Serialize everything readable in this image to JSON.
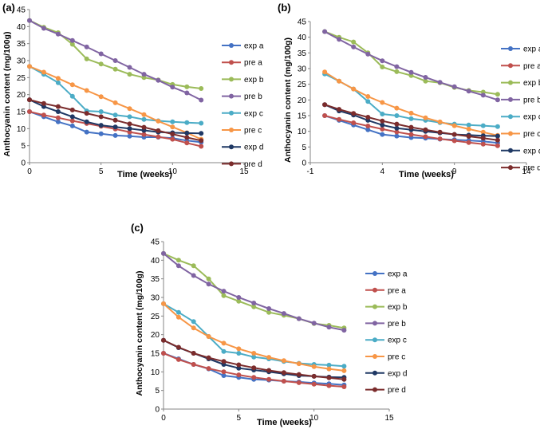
{
  "figure": {
    "series_names": [
      "exp a",
      "pre a",
      "exp b",
      "pre b",
      "exp c",
      "pre c",
      "exp d",
      "pre d"
    ],
    "series_colors": [
      "#4472C4",
      "#C0504D",
      "#9BBB59",
      "#8064A2",
      "#4BACC6",
      "#F79646",
      "#1F3864",
      "#7B2C2C"
    ]
  },
  "chart_data": [
    {
      "type": "line",
      "panel_label": "(a)",
      "xlabel": "Time (weeks)",
      "ylabel": "Anthocyanin content (mg/100g)",
      "xlim": [
        0,
        15
      ],
      "ylim": [
        0,
        45
      ],
      "xticks": [
        0,
        5,
        10,
        15
      ],
      "yticks": [
        0,
        5,
        10,
        15,
        20,
        25,
        30,
        35,
        40,
        45
      ],
      "legend": "right",
      "series": [
        {
          "name": "exp a",
          "x": [
            0,
            1,
            2,
            3,
            4,
            5,
            6,
            7,
            8,
            9,
            10,
            11,
            12
          ],
          "values": [
            15.0,
            13.5,
            12.0,
            10.8,
            9.0,
            8.5,
            8.0,
            7.8,
            7.5,
            7.5,
            7.2,
            6.5,
            6.0
          ]
        },
        {
          "name": "pre a",
          "x": [
            0,
            1,
            2,
            3,
            4,
            5,
            6,
            7,
            8,
            9,
            10,
            11,
            12
          ],
          "values": [
            15.0,
            14.0,
            13.2,
            12.3,
            11.5,
            10.7,
            9.9,
            9.0,
            8.3,
            7.6,
            6.9,
            5.8,
            4.8
          ]
        },
        {
          "name": "exp b",
          "x": [
            0,
            1,
            2,
            3,
            4,
            5,
            6,
            7,
            8,
            9,
            10,
            11,
            12
          ],
          "values": [
            41.8,
            39.8,
            38.2,
            34.8,
            30.5,
            29.0,
            27.5,
            26.0,
            25.0,
            24.3,
            23.0,
            22.3,
            21.8
          ]
        },
        {
          "name": "pre b",
          "x": [
            0,
            1,
            2,
            3,
            4,
            5,
            6,
            7,
            8,
            9,
            10,
            11,
            12
          ],
          "values": [
            41.8,
            39.5,
            37.8,
            35.9,
            34.0,
            32.0,
            30.0,
            28.0,
            26.0,
            24.2,
            22.2,
            20.5,
            18.4
          ]
        },
        {
          "name": "exp c",
          "x": [
            0,
            1,
            2,
            3,
            4,
            5,
            6,
            7,
            8,
            9,
            10,
            11,
            12
          ],
          "values": [
            28.3,
            26.0,
            23.5,
            19.5,
            15.2,
            15.0,
            14.0,
            13.5,
            12.7,
            12.3,
            12.0,
            11.8,
            11.6
          ]
        },
        {
          "name": "pre c",
          "x": [
            0,
            1,
            2,
            3,
            4,
            5,
            6,
            7,
            8,
            9,
            10,
            11,
            12
          ],
          "values": [
            28.3,
            26.6,
            24.8,
            22.9,
            21.2,
            19.4,
            17.6,
            15.9,
            14.1,
            12.2,
            10.5,
            8.8,
            6.9
          ]
        },
        {
          "name": "exp d",
          "x": [
            0,
            1,
            2,
            3,
            4,
            5,
            6,
            7,
            8,
            9,
            10,
            11,
            12
          ],
          "values": [
            18.5,
            16.5,
            15.0,
            13.5,
            12.0,
            11.0,
            10.5,
            10.0,
            9.5,
            9.0,
            8.8,
            8.7,
            8.6
          ]
        },
        {
          "name": "pre d",
          "x": [
            0,
            1,
            2,
            3,
            4,
            5,
            6,
            7,
            8,
            9,
            10,
            11,
            12
          ],
          "values": [
            18.5,
            17.4,
            16.5,
            15.5,
            14.5,
            13.5,
            12.5,
            11.4,
            10.4,
            9.4,
            8.4,
            7.4,
            6.5
          ]
        }
      ]
    },
    {
      "type": "line",
      "panel_label": "(b)",
      "xlabel": "Time (weeks)",
      "ylabel": "Anthocyanin content (mg/100g)",
      "xlim": [
        -1,
        14
      ],
      "ylim": [
        0,
        45
      ],
      "xticks": [
        -1,
        4,
        9,
        14
      ],
      "yticks": [
        0,
        5,
        10,
        15,
        20,
        25,
        30,
        35,
        40,
        45
      ],
      "legend": "right",
      "series": [
        {
          "name": "exp a",
          "x": [
            0,
            1,
            2,
            3,
            4,
            5,
            6,
            7,
            8,
            9,
            10,
            11,
            12
          ],
          "values": [
            15.0,
            13.5,
            12.0,
            10.5,
            9.0,
            8.5,
            8.0,
            7.8,
            7.5,
            7.3,
            7.1,
            6.8,
            6.3
          ]
        },
        {
          "name": "pre a",
          "x": [
            0,
            1,
            2,
            3,
            4,
            5,
            6,
            7,
            8,
            9,
            10,
            11,
            12
          ],
          "values": [
            15.0,
            13.8,
            12.7,
            11.7,
            10.7,
            9.8,
            9.0,
            8.3,
            7.6,
            7.0,
            6.4,
            5.9,
            5.4
          ]
        },
        {
          "name": "exp b",
          "x": [
            0,
            1,
            2,
            3,
            4,
            5,
            6,
            7,
            8,
            9,
            10,
            11,
            12
          ],
          "values": [
            41.8,
            40.0,
            38.5,
            35.0,
            30.5,
            29.0,
            27.8,
            26.0,
            25.5,
            24.0,
            23.0,
            22.5,
            21.8
          ]
        },
        {
          "name": "pre b",
          "x": [
            0,
            1,
            2,
            3,
            4,
            5,
            6,
            7,
            8,
            9,
            10,
            11,
            12
          ],
          "values": [
            41.8,
            39.3,
            36.9,
            34.6,
            32.5,
            30.6,
            28.8,
            27.2,
            25.6,
            24.2,
            22.8,
            21.5,
            20.0
          ]
        },
        {
          "name": "exp c",
          "x": [
            0,
            1,
            2,
            3,
            4,
            5,
            6,
            7,
            8,
            9,
            10,
            11,
            12
          ],
          "values": [
            28.3,
            26.0,
            23.5,
            19.5,
            15.5,
            15.0,
            14.0,
            13.5,
            12.8,
            12.3,
            12.0,
            11.8,
            11.5
          ]
        },
        {
          "name": "pre c",
          "x": [
            0,
            1,
            2,
            3,
            4,
            5,
            6,
            7,
            8,
            9,
            10,
            11,
            12
          ],
          "values": [
            28.9,
            26.0,
            23.5,
            21.1,
            19.2,
            17.4,
            15.8,
            14.3,
            13.0,
            11.8,
            10.7,
            9.7,
            8.7
          ]
        },
        {
          "name": "exp d",
          "x": [
            0,
            1,
            2,
            3,
            4,
            5,
            6,
            7,
            8,
            9,
            10,
            11,
            12
          ],
          "values": [
            18.5,
            16.5,
            15.2,
            13.5,
            12.0,
            11.0,
            10.5,
            10.0,
            9.5,
            9.0,
            8.8,
            8.6,
            8.5
          ]
        },
        {
          "name": "pre d",
          "x": [
            0,
            1,
            2,
            3,
            4,
            5,
            6,
            7,
            8,
            9,
            10,
            11,
            12
          ],
          "values": [
            18.5,
            17.0,
            15.7,
            14.5,
            13.3,
            12.3,
            11.3,
            10.5,
            9.7,
            9.0,
            8.4,
            7.8,
            7.2
          ]
        }
      ]
    },
    {
      "type": "line",
      "panel_label": "(c)",
      "xlabel": "Time (weeks)",
      "ylabel": "Anthocyanin content (mg/100g)",
      "xlim": [
        0,
        15
      ],
      "ylim": [
        0,
        45
      ],
      "xticks": [
        0,
        5,
        10,
        15
      ],
      "yticks": [
        0,
        5,
        10,
        15,
        20,
        25,
        30,
        35,
        40,
        45
      ],
      "legend": "right",
      "series": [
        {
          "name": "exp a",
          "x": [
            0,
            1,
            2,
            3,
            4,
            5,
            6,
            7,
            8,
            9,
            10,
            11,
            12
          ],
          "values": [
            15.0,
            13.5,
            12.0,
            10.8,
            9.0,
            8.5,
            8.0,
            7.8,
            7.5,
            7.3,
            7.0,
            6.8,
            6.5
          ]
        },
        {
          "name": "pre a",
          "x": [
            0,
            1,
            2,
            3,
            4,
            5,
            6,
            7,
            8,
            9,
            10,
            11,
            12
          ],
          "values": [
            15.0,
            13.3,
            12.0,
            10.9,
            10.0,
            9.2,
            8.5,
            8.0,
            7.5,
            7.1,
            6.7,
            6.3,
            6.0
          ]
        },
        {
          "name": "exp b",
          "x": [
            0,
            1,
            2,
            3,
            4,
            5,
            6,
            7,
            8,
            9,
            10,
            11,
            12
          ],
          "values": [
            41.8,
            40.0,
            38.5,
            35.0,
            30.5,
            29.0,
            27.5,
            26.0,
            25.2,
            24.3,
            23.0,
            22.5,
            21.8
          ]
        },
        {
          "name": "pre b",
          "x": [
            0,
            1,
            2,
            3,
            4,
            5,
            6,
            7,
            8,
            9,
            10,
            11,
            12
          ],
          "values": [
            41.8,
            38.5,
            35.9,
            33.6,
            31.7,
            30.0,
            28.5,
            27.0,
            25.7,
            24.3,
            23.1,
            22.0,
            21.2
          ]
        },
        {
          "name": "exp c",
          "x": [
            0,
            1,
            2,
            3,
            4,
            5,
            6,
            7,
            8,
            9,
            10,
            11,
            12
          ],
          "values": [
            28.3,
            26.0,
            23.5,
            19.5,
            15.5,
            15.0,
            14.0,
            13.5,
            12.8,
            12.3,
            12.0,
            11.8,
            11.5
          ]
        },
        {
          "name": "pre c",
          "x": [
            0,
            1,
            2,
            3,
            4,
            5,
            6,
            7,
            8,
            9,
            10,
            11,
            12
          ],
          "values": [
            28.3,
            24.7,
            21.8,
            19.5,
            17.7,
            16.2,
            15.0,
            13.9,
            13.0,
            12.2,
            11.4,
            10.8,
            10.3
          ]
        },
        {
          "name": "exp d",
          "x": [
            0,
            1,
            2,
            3,
            4,
            5,
            6,
            7,
            8,
            9,
            10,
            11,
            12
          ],
          "values": [
            18.5,
            16.5,
            15.0,
            13.5,
            12.0,
            11.0,
            10.5,
            10.0,
            9.5,
            9.0,
            8.8,
            8.6,
            8.5
          ]
        },
        {
          "name": "pre d",
          "x": [
            0,
            1,
            2,
            3,
            4,
            5,
            6,
            7,
            8,
            9,
            10,
            11,
            12
          ],
          "values": [
            18.5,
            16.6,
            15.0,
            13.8,
            12.8,
            11.9,
            11.1,
            10.4,
            9.8,
            9.3,
            8.8,
            8.4,
            8.0
          ]
        }
      ]
    }
  ]
}
